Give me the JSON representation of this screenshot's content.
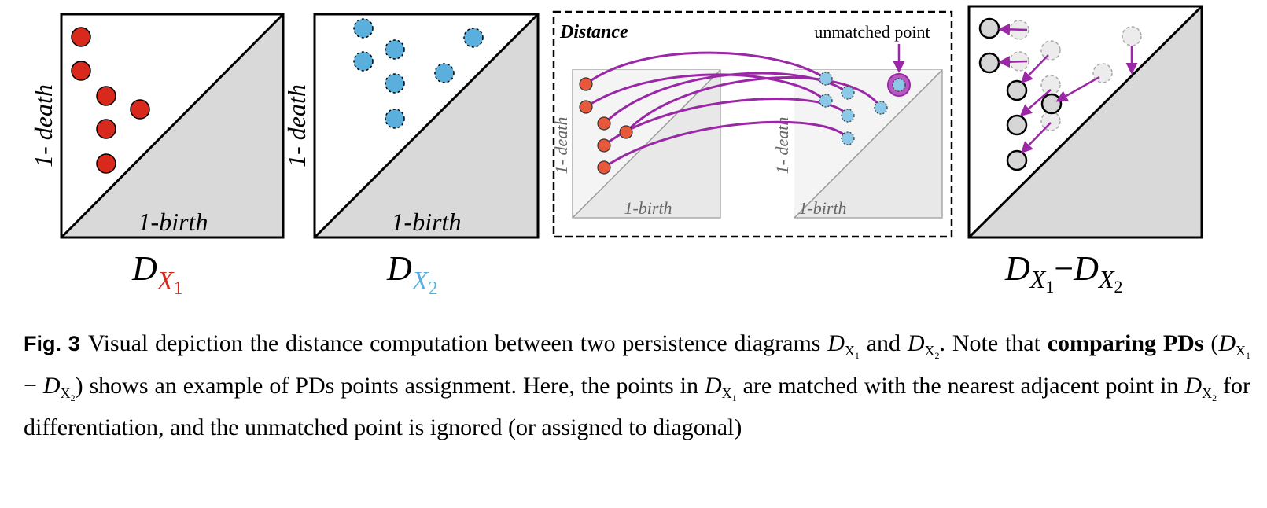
{
  "panels": {
    "dx1": {
      "ylabel": "1- death",
      "xlabel": "1-birth",
      "title_base": "D",
      "title_sub": "X",
      "title_subsub": "1",
      "color": "#d9291c"
    },
    "dx2": {
      "ylabel": "1- death",
      "xlabel": "1-birth",
      "title_base": "D",
      "title_sub": "X",
      "title_subsub": "2",
      "color": "#5aafdc"
    },
    "distance": {
      "title": "Distance",
      "unmatched_label": "unmatched point",
      "left_ylabel": "1- death",
      "left_xlabel": "1-birth",
      "right_ylabel": "1- death",
      "right_xlabel": "1-birth",
      "arc_color": "#9a27a6",
      "red_point_color": "#e8583a"
    },
    "diff": {
      "title_left_base": "D",
      "title_left_sub": "X",
      "title_left_subsub": "1",
      "title_minus": "−",
      "title_right_base": "D",
      "title_right_sub": "X",
      "title_right_subsub": "2"
    }
  },
  "caption": {
    "fig_label": "Fig. 3",
    "text1": "Visual depiction the distance computation between two persistence diagrams ",
    "d1_base": "D",
    "d1_sub": "X",
    "d1_subsub": "1",
    "and": " and ",
    "d2_base": "D",
    "d2_sub": "X",
    "d2_subsub": "2",
    "text2": ". Note that ",
    "bold": "comparing PDs",
    "paren_open": " (",
    "p1_base": "D",
    "p1_sub": "X",
    "p1_subsub": "1",
    "minus": " − ",
    "p2_base": "D",
    "p2_sub": "X",
    "p2_subsub": "2",
    "text3": ") shows an example of PDs points assignment. Here, the points in ",
    "d3_base": "D",
    "d3_sub": "X",
    "d3_subsub": "1",
    "text4": " are matched with the nearest adjacent point in ",
    "d4_base": "D",
    "d4_sub": "X",
    "d4_subsub": "2",
    "text5": " for differentiation, and the unmatched point is ignored (or assigned to diagonal)"
  }
}
